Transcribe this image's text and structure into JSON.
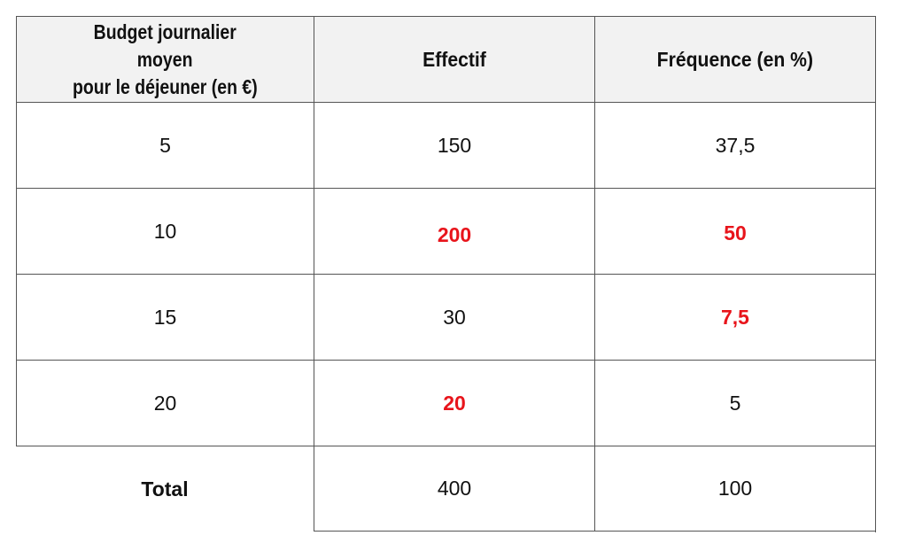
{
  "table": {
    "headers": [
      "Budget journalier moyen pour le déjeuner (en €)",
      "Effectif",
      "Fréquence (en %)"
    ],
    "header_lines": [
      "Budget journalier",
      "moyen",
      "pour le déjeuner (en €)"
    ],
    "rows": [
      {
        "budget": "5",
        "effectif": "150",
        "frequence": "37,5",
        "effectif_answer": false,
        "frequence_answer": false
      },
      {
        "budget": "10",
        "effectif": "200",
        "frequence": "50",
        "effectif_answer": true,
        "frequence_answer": true
      },
      {
        "budget": "15",
        "effectif": "30",
        "frequence": "7,5",
        "effectif_answer": false,
        "frequence_answer": true
      },
      {
        "budget": "20",
        "effectif": "20",
        "frequence": "5",
        "effectif_answer": true,
        "frequence_answer": false
      }
    ],
    "total": {
      "label": "Total",
      "effectif": "400",
      "frequence": "100"
    },
    "answer_color": "#e8141b",
    "header_bg": "#f2f2f2"
  }
}
